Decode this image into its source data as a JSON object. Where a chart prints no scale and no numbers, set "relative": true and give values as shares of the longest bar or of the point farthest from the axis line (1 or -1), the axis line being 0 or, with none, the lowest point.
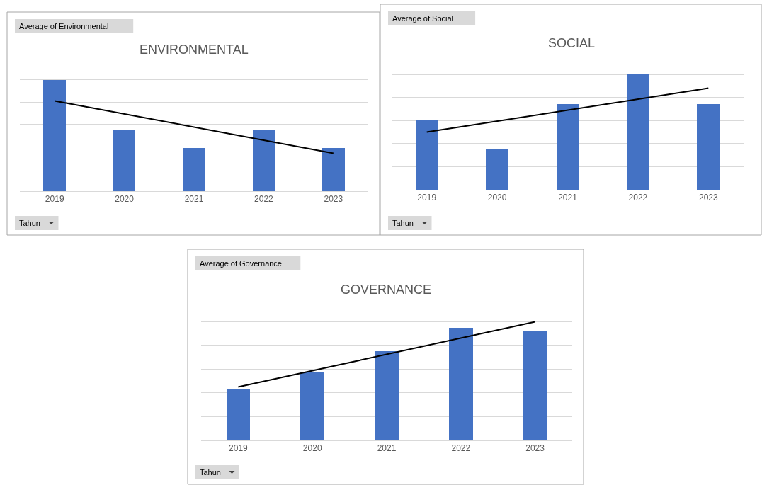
{
  "chart_data": [
    {
      "type": "bar",
      "title": "ENVIRONMENTAL",
      "annotations": [
        "Average of Environmental",
        "Tahun"
      ],
      "categories": [
        "2019",
        "2020",
        "2021",
        "2022",
        "2023"
      ],
      "relative": true,
      "grid": true,
      "series": [
        {
          "color": "#4472c4",
          "values": [
            1,
            0.545,
            0.39,
            0.545,
            0.39
          ]
        },
        {
          "type": "line",
          "color": "#000000",
          "values": [
            0.81,
            null,
            null,
            null,
            0.34
          ]
        }
      ]
    },
    {
      "type": "bar",
      "title": "SOCIAL",
      "annotations": [
        "Average of Social",
        "Tahun"
      ],
      "categories": [
        "2019",
        "2020",
        "2021",
        "2022",
        "2023"
      ],
      "relative": true,
      "grid": true,
      "series": [
        {
          "color": "#4472c4",
          "values": [
            0.605,
            0.35,
            0.74,
            1,
            0.74
          ]
        },
        {
          "type": "line",
          "color": "#000000",
          "values": [
            0.5,
            null,
            null,
            null,
            0.88
          ]
        }
      ]
    },
    {
      "type": "bar",
      "title": "GOVERNANCE",
      "annotations": [
        "Average of Governance",
        "Tahun"
      ],
      "categories": [
        "2019",
        "2020",
        "2021",
        "2022",
        "2023"
      ],
      "relative": true,
      "grid": true,
      "series": [
        {
          "color": "#4472c4",
          "values": [
            0.43,
            0.58,
            0.75,
            0.95,
            0.92
          ]
        },
        {
          "type": "line",
          "color": "#000000",
          "values": [
            0.45,
            null,
            null,
            null,
            1
          ]
        }
      ]
    }
  ]
}
